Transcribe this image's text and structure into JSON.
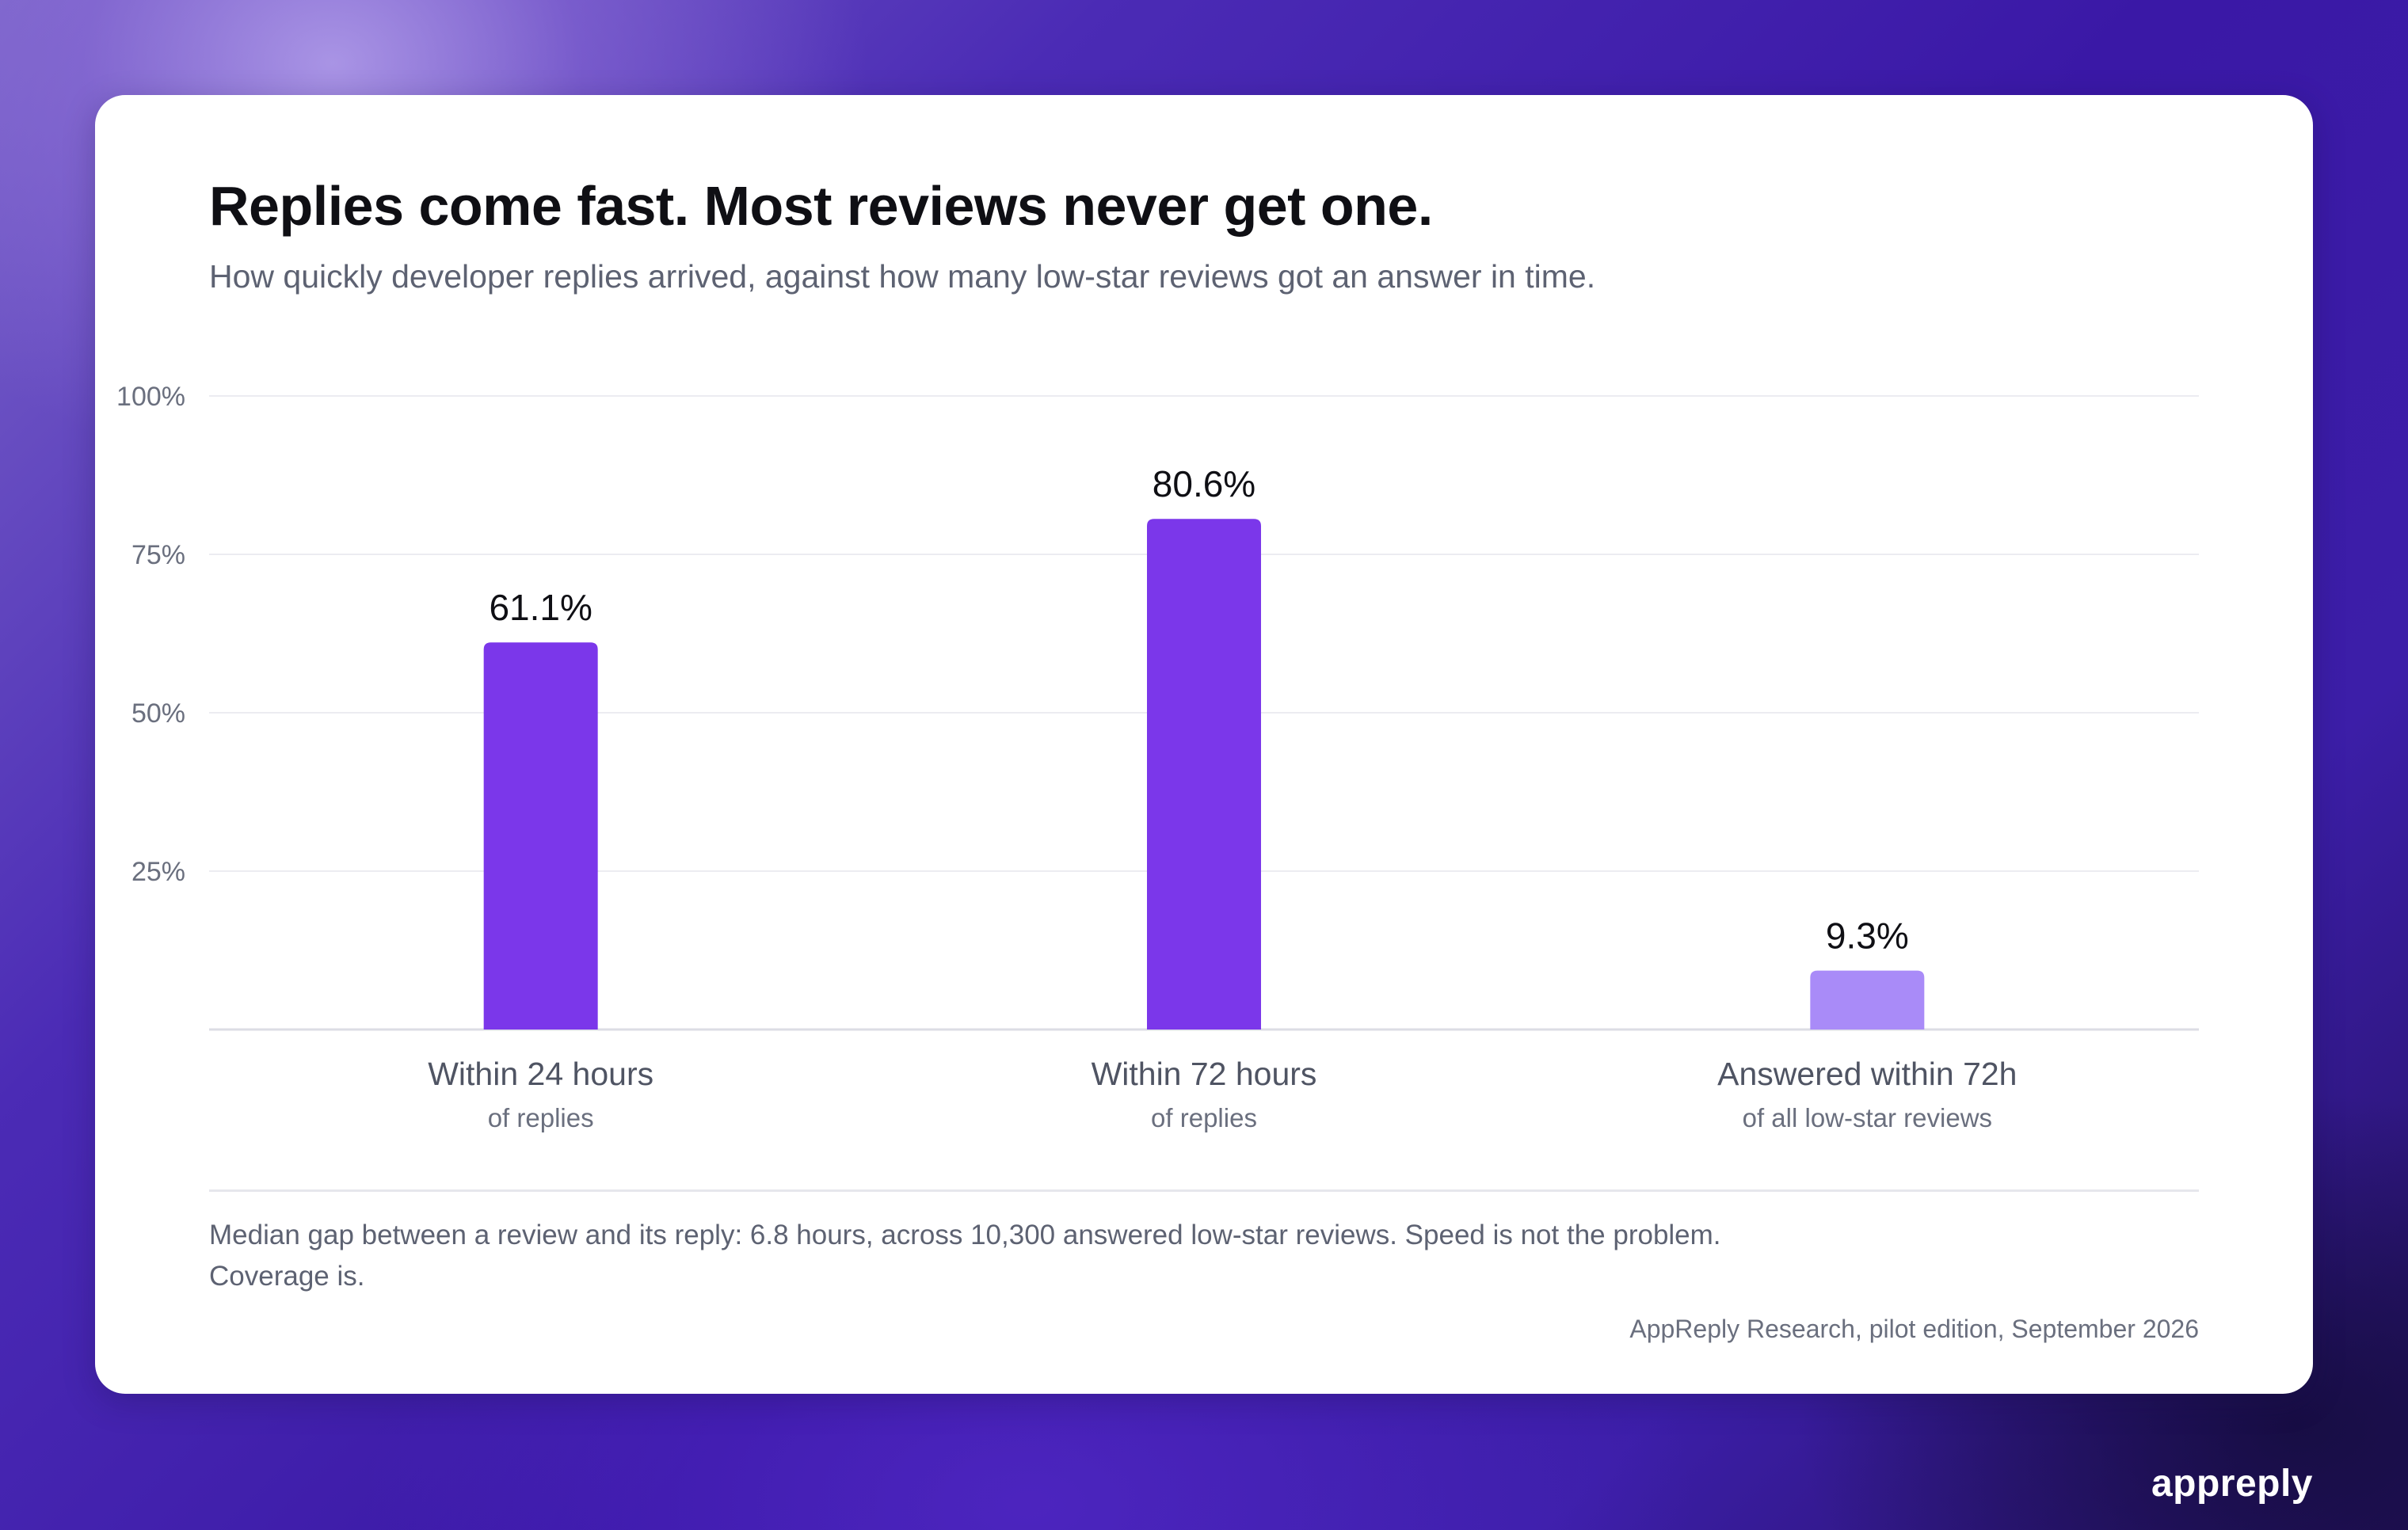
{
  "title": "Replies come fast. Most reviews never get one.",
  "subtitle": "How quickly developer replies arrived, against how many low-star reviews got an answer in time.",
  "note": "Median gap between a review and its reply: 6.8 hours, across 10,300 answered low-star reviews. Speed is not the problem. Coverage is.",
  "source": "AppReply Research, pilot edition, September 2026",
  "brand": "appreply",
  "chart_data": {
    "type": "bar",
    "categories": [
      "Within 24 hours",
      "Within 72 hours",
      "Answered within 72h"
    ],
    "category_sublabels": [
      "of replies",
      "of replies",
      "of all low-star reviews"
    ],
    "values": [
      61.1,
      80.6,
      9.3
    ],
    "data_labels": [
      "61.1%",
      "80.6%",
      "9.3%"
    ],
    "bar_colors": [
      "#7b37ea",
      "#7b37ea",
      "#a98bf8"
    ],
    "ylim": [
      0,
      100
    ],
    "yticks": [
      25,
      50,
      75,
      100
    ],
    "ytick_labels": [
      "25%",
      "50%",
      "75%",
      "100%"
    ],
    "grid": true,
    "legend": "none"
  }
}
